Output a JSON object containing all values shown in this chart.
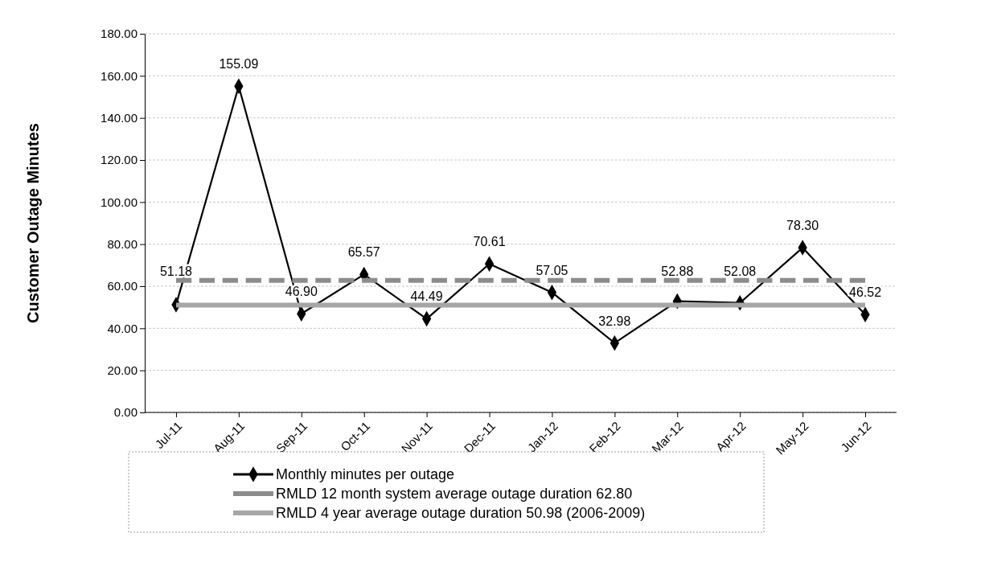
{
  "chart_data": {
    "type": "line",
    "ylabel": "Customer Outage Minutes",
    "categories": [
      "Jul-11",
      "Aug-11",
      "Sep-11",
      "Oct-11",
      "Nov-11",
      "Dec-11",
      "Jan-12",
      "Feb-12",
      "Mar-12",
      "Apr-12",
      "May-12",
      "Jun-12"
    ],
    "series": [
      {
        "name": "Monthly minutes per outage",
        "color": "#000000",
        "marker": "diamond",
        "line_style": "solid",
        "values": [
          51.18,
          155.09,
          46.9,
          65.57,
          44.49,
          70.61,
          57.05,
          32.98,
          52.88,
          52.08,
          78.3,
          46.52
        ],
        "value_labels": [
          "51.18",
          "155.09",
          "46.90",
          "65.57",
          "44.49",
          "70.61",
          "57.05",
          "32.98",
          "52.88",
          "52.08",
          "78.30",
          "46.52"
        ]
      },
      {
        "name": "RMLD 12 month system average outage duration 62.80",
        "color": "#8c8c8c",
        "marker": "none",
        "line_style": "dashed",
        "values": [
          62.8,
          62.8,
          62.8,
          62.8,
          62.8,
          62.8,
          62.8,
          62.8,
          62.8,
          62.8,
          62.8,
          62.8
        ]
      },
      {
        "name": "RMLD 4 year average outage duration 50.98 (2006-2009)",
        "color": "#a6a6a6",
        "marker": "none",
        "line_style": "solid",
        "values": [
          50.98,
          50.98,
          50.98,
          50.98,
          50.98,
          50.98,
          50.98,
          50.98,
          50.98,
          50.98,
          50.98,
          50.98
        ]
      }
    ],
    "ylim": [
      0,
      180
    ],
    "yticks": [
      {
        "value": 0,
        "label": "0.00"
      },
      {
        "value": 20,
        "label": "20.00"
      },
      {
        "value": 40,
        "label": "40.00"
      },
      {
        "value": 60,
        "label": "60.00"
      },
      {
        "value": 80,
        "label": "80.00"
      },
      {
        "value": 100,
        "label": "100.00"
      },
      {
        "value": 120,
        "label": "120.00"
      },
      {
        "value": 140,
        "label": "140.00"
      },
      {
        "value": 160,
        "label": "160.00"
      },
      {
        "value": 180,
        "label": "180.00"
      }
    ],
    "grid": "y",
    "legend": "bottom"
  }
}
